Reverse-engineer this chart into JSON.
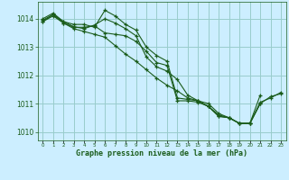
{
  "xlabel": "Graphe pression niveau de la mer (hPa)",
  "background_color": "#cceeff",
  "grid_color": "#99cccc",
  "line_color": "#1a5c1a",
  "xlim": [
    -0.5,
    23.5
  ],
  "ylim": [
    1009.7,
    1014.6
  ],
  "yticks": [
    1010,
    1011,
    1012,
    1013,
    1014
  ],
  "xticks": [
    0,
    1,
    2,
    3,
    4,
    5,
    6,
    7,
    8,
    9,
    10,
    11,
    12,
    13,
    14,
    15,
    16,
    17,
    18,
    19,
    20,
    21,
    22,
    23
  ],
  "series": [
    {
      "x": [
        0,
        1,
        2,
        3,
        4,
        5,
        6,
        7,
        8,
        9,
        10,
        11,
        12,
        13,
        14,
        15,
        16,
        17,
        18,
        19,
        20,
        21
      ],
      "y": [
        1014.0,
        1014.2,
        1013.9,
        1013.8,
        1013.8,
        1013.7,
        1014.3,
        1014.1,
        1013.8,
        1013.6,
        1013.0,
        1012.7,
        1012.5,
        1011.2,
        1011.15,
        1011.1,
        1010.9,
        1010.55,
        1010.5,
        1010.3,
        1010.3,
        1011.0
      ]
    },
    {
      "x": [
        0,
        1,
        2,
        3,
        4,
        5,
        6,
        7,
        8,
        9,
        10,
        11,
        12,
        13,
        14,
        15,
        16,
        17,
        18,
        19,
        20,
        21,
        22,
        23
      ],
      "y": [
        1013.9,
        1014.15,
        1013.85,
        1013.65,
        1013.55,
        1013.45,
        1013.35,
        1013.05,
        1012.75,
        1012.5,
        1012.2,
        1011.9,
        1011.65,
        1011.45,
        1011.2,
        1011.1,
        1010.9,
        1010.6,
        1010.5,
        1010.3,
        1010.3,
        1011.05,
        1011.2,
        1011.4
      ]
    },
    {
      "x": [
        0,
        1,
        2,
        3,
        4,
        5,
        6,
        7,
        8,
        9,
        10,
        11,
        12,
        13,
        14,
        15,
        16,
        17,
        18,
        19,
        20,
        21
      ],
      "y": [
        1013.9,
        1014.1,
        1013.85,
        1013.7,
        1013.7,
        1013.75,
        1013.5,
        1013.45,
        1013.4,
        1013.2,
        1012.85,
        1012.45,
        1012.35,
        1011.1,
        1011.1,
        1011.05,
        1010.9,
        1010.55,
        1010.5,
        1010.3,
        1010.3,
        1011.3
      ]
    },
    {
      "x": [
        0,
        1,
        2,
        3,
        4,
        5,
        6,
        7,
        8,
        9,
        10,
        11,
        12,
        13,
        14,
        15,
        16,
        17,
        18,
        19,
        20,
        21,
        22,
        23
      ],
      "y": [
        1013.95,
        1014.15,
        1013.9,
        1013.72,
        1013.65,
        1013.78,
        1014.0,
        1013.85,
        1013.65,
        1013.4,
        1012.65,
        1012.3,
        1012.15,
        1011.85,
        1011.3,
        1011.1,
        1011.0,
        1010.65,
        1010.5,
        1010.3,
        1010.3,
        1011.0,
        1011.25,
        1011.35
      ]
    }
  ]
}
